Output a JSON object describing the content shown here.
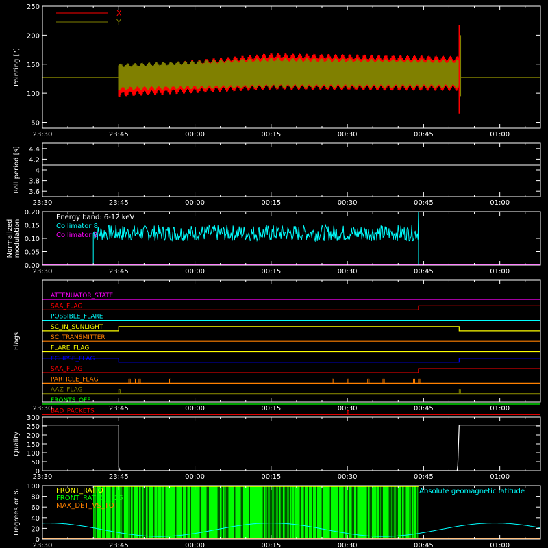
{
  "time_ticks": [
    "23:30",
    "23:45",
    "00:00",
    "00:15",
    "00:30",
    "00:45",
    "01:00"
  ],
  "colors": {
    "x": "#ff0000",
    "y": "#808000",
    "white": "#ffffff",
    "cyan": "#00ffff",
    "magenta": "#ff00ff",
    "green": "#00ff00",
    "orange": "#ff8000",
    "yellow": "#ffff00",
    "blue": "#0000ff",
    "olive": "#808000",
    "red": "#ff0000"
  },
  "chart_data": [
    {
      "id": "pointing",
      "type": "line",
      "ylabel": "Pointing [\"]",
      "yticks": [
        50,
        100,
        150,
        200,
        250
      ],
      "ylim": [
        40,
        250
      ],
      "legend": [
        {
          "name": "X",
          "color": "#ff0000"
        },
        {
          "name": "Y",
          "color": "#808000"
        }
      ],
      "baseline": 127,
      "envelope_x": {
        "t": [
          "23:45",
          "00:15",
          "00:52"
        ],
        "upper": [
          142,
          165,
          160
        ],
        "lower": [
          98,
          110,
          108
        ]
      },
      "envelope_y": {
        "t": [
          "23:45",
          "00:15",
          "00:52"
        ],
        "upper": [
          148,
          158,
          155
        ],
        "lower": [
          108,
          112,
          112
        ]
      },
      "spike": {
        "t": "00:52",
        "max": 218,
        "min": 65
      }
    },
    {
      "id": "roll",
      "type": "line",
      "ylabel": "Roll period [s]",
      "yticks": [
        3.6,
        3.8,
        4.0,
        4.2,
        4.4
      ],
      "ylim": [
        3.5,
        4.5
      ],
      "value": 4.09
    },
    {
      "id": "modulation",
      "type": "line",
      "ylabel": [
        "Normalized",
        "modulation"
      ],
      "yticks": [
        "0.00",
        "0.05",
        "0.10",
        "0.15",
        "0.20"
      ],
      "ylim": [
        0,
        0.2
      ],
      "annotation": "Energy band: 6-12 keV",
      "series": [
        {
          "name": "Collimator 8",
          "color": "#00ffff",
          "t_start": "23:40",
          "t_end": "00:44",
          "mean": 0.12
        },
        {
          "name": "Collimator 9",
          "color": "#ff00ff",
          "value": 0.0
        }
      ]
    },
    {
      "id": "flags",
      "type": "step",
      "ylabel": "Flags",
      "flags": [
        {
          "name": "ATTENUATOR_STATE",
          "color": "#ff00ff",
          "steps": [
            [
              "23:30",
              0
            ]
          ]
        },
        {
          "name": "SAA_FLAG",
          "color": "#ff0000",
          "steps": [
            [
              "23:30",
              0
            ],
            [
              "00:44",
              1
            ]
          ]
        },
        {
          "name": "POSSIBLE_FLARE",
          "color": "#00ffff",
          "steps": [
            [
              "23:30",
              0
            ]
          ]
        },
        {
          "name": "SC_IN_SUNLIGHT",
          "color": "#ffff00",
          "steps": [
            [
              "23:30",
              0
            ],
            [
              "23:45",
              1
            ],
            [
              "00:52",
              0
            ]
          ]
        },
        {
          "name": "SC_TRANSMITTER",
          "color": "#ff8000",
          "steps": [
            [
              "23:30",
              0
            ]
          ]
        },
        {
          "name": "FLARE_FLAG",
          "color": "#ffff00",
          "steps": [
            [
              "23:30",
              0
            ]
          ]
        },
        {
          "name": "ECLIPSE_FLAG",
          "color": "#0000ff",
          "steps": [
            [
              "23:30",
              1
            ],
            [
              "23:45",
              0
            ],
            [
              "00:52",
              1
            ]
          ]
        },
        {
          "name": "SAA_FLAG",
          "color": "#ff0000",
          "steps": [
            [
              "23:30",
              0
            ],
            [
              "00:44",
              1
            ]
          ]
        },
        {
          "name": "PARTICLE_FLAG",
          "color": "#ff8000",
          "steps": [
            [
              "23:30",
              0
            ]
          ],
          "blips": [
            "23:47",
            "23:48",
            "23:49",
            "23:55",
            "00:27",
            "00:30",
            "00:34",
            "00:37",
            "00:43",
            "00:44"
          ]
        },
        {
          "name": "AAZ_FLAG",
          "color": "#808000",
          "steps": [
            [
              "23:30",
              0
            ]
          ],
          "blips": [
            "23:45",
            "00:52"
          ]
        },
        {
          "name": "FRONTS_OFF",
          "color": "#00ff00",
          "steps": [
            [
              "23:30",
              0
            ]
          ]
        },
        {
          "name": "BAD_PACKETS",
          "color": "#ff0000",
          "steps": [
            [
              "23:30",
              0
            ]
          ],
          "blips": [
            "00:30"
          ]
        }
      ]
    },
    {
      "id": "quality",
      "type": "line",
      "ylabel": "Quality",
      "yticks": [
        0,
        50,
        100,
        150,
        200,
        250,
        300
      ],
      "ylim": [
        0,
        300
      ],
      "segments": [
        {
          "t0": "23:30",
          "t1": "23:45",
          "value": 255
        },
        {
          "t0": "00:52",
          "t1": "01:08",
          "value": 255
        }
      ],
      "interior_value": 0
    },
    {
      "id": "front",
      "type": "bar",
      "ylabel": "Degrees or %",
      "yticks": [
        0,
        20,
        40,
        60,
        80,
        100
      ],
      "ylim": [
        0,
        100
      ],
      "legend": [
        {
          "name": "FRONT_RATIO",
          "color": "#ffff00"
        },
        {
          "name": "FRONT_RATIO_1_25",
          "color": "#00ff00"
        },
        {
          "name": "MAX_DET_VS_TOT",
          "color": "#ff8000"
        }
      ],
      "right_label": "Absolute geomagnetic latitude",
      "bars": {
        "t_start": "23:40",
        "t_end": "00:44",
        "value": 100
      },
      "latitude": {
        "t": [
          "23:30",
          "23:52",
          "00:15",
          "00:36",
          "00:59",
          "01:08"
        ],
        "value": [
          30,
          5,
          30,
          5,
          30,
          20
        ]
      }
    }
  ]
}
